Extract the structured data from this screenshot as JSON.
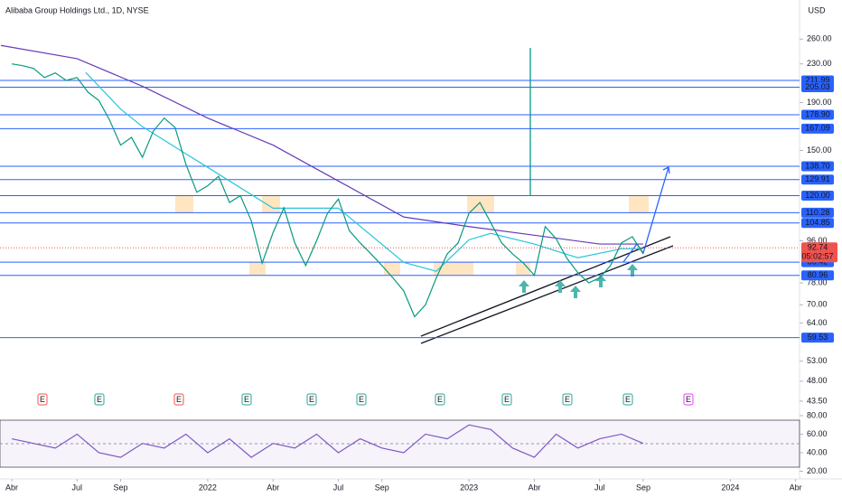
{
  "chart_data": [
    {
      "type": "line",
      "title": "Alibaba Group Holdings Ltd., 1D, NYSE",
      "currency": "USD",
      "log_scale": true,
      "color": "#089981",
      "x": [
        0,
        0.5,
        1,
        1.5,
        2,
        2.5,
        3,
        3.5,
        4,
        4.5,
        5,
        5.5,
        6,
        6.5,
        7,
        7.5,
        8,
        8.5,
        9,
        9.5,
        10,
        10.5,
        11,
        11.5,
        12,
        12.5,
        13,
        13.5,
        14,
        14.5,
        15,
        15.5,
        16,
        16.5,
        17,
        17.5,
        18,
        18.5,
        19,
        19.5,
        20,
        20.5,
        21,
        21.5,
        22,
        22.5,
        23,
        23.5,
        24,
        24.5,
        25,
        25.5,
        26,
        26.5,
        27,
        27.5,
        28,
        28.5,
        29
      ],
      "values": [
        230,
        228,
        225,
        215,
        220,
        212,
        215,
        200,
        192,
        174,
        154,
        160,
        145,
        165,
        176,
        168,
        140,
        122,
        126,
        132,
        116,
        120,
        106,
        86,
        100,
        113,
        95,
        85,
        96,
        110,
        118,
        101,
        95,
        90,
        85,
        80,
        75,
        66,
        70,
        80,
        90,
        95,
        110,
        116,
        105,
        95,
        90,
        86,
        81,
        103,
        97,
        88,
        82,
        78,
        80,
        85,
        95,
        98,
        90
      ],
      "series": [
        {
          "color": "#26c6da",
          "x": [
            3.4,
            5,
            6,
            8,
            9,
            12,
            15,
            18,
            19.5,
            21,
            22,
            24,
            26,
            28,
            29
          ],
          "values": [
            220.5,
            184,
            168.7,
            147.5,
            138,
            112.8,
            112.8,
            86.3,
            82.6,
            96.5,
            99.6,
            94.5,
            88.3,
            92.3,
            92.3
          ]
        },
        {
          "color": "#673ab7",
          "x": [
            -0.5,
            3,
            6,
            9,
            12,
            15,
            18,
            21,
            24,
            27,
            29
          ],
          "values": [
            252,
            236,
            206,
            176,
            154,
            129,
            108,
            103,
            98.7,
            94.5,
            94.5
          ]
        }
      ],
      "levels": [
        211.99,
        {
          "value": 205.03,
          "label": "205.03"
        },
        {
          "value": 178.9,
          "label": "178.90"
        },
        167.09,
        {
          "value": 138.7,
          "label": "138.70"
        },
        129.91,
        {
          "value": 120,
          "label": "120.00"
        },
        110.28,
        104.85,
        86.42,
        80.96,
        59.53
      ],
      "last_price": 92.74,
      "countdown": "05:02:57",
      "earnings": [
        "E",
        "E",
        "E",
        "E",
        "E",
        "E",
        "E",
        "E",
        "E",
        "E",
        "E"
      ],
      "xlim": [
        -0.54,
        36.18
      ],
      "ylim": [
        41.4,
        288.4
      ],
      "xticks": [
        {
          "value": 0,
          "label": "Abr"
        },
        {
          "value": 3,
          "label": "Jul"
        },
        {
          "value": 5,
          "label": "Sep"
        },
        {
          "value": 9,
          "label": "2022"
        },
        {
          "value": 12,
          "label": "Abr"
        },
        {
          "value": 15,
          "label": "Jul"
        },
        {
          "value": 17,
          "label": "Sep"
        },
        {
          "value": 21,
          "label": "2023"
        },
        {
          "value": 24,
          "label": "Abr"
        },
        {
          "value": 27,
          "label": "Jul"
        },
        {
          "value": 29,
          "label": "Sep"
        },
        {
          "value": 33,
          "label": "2024"
        },
        {
          "value": 36,
          "label": "Abr"
        }
      ],
      "yticks": [
        {
          "value": 260,
          "label": "260.00"
        },
        {
          "value": 230,
          "label": "230.00"
        },
        {
          "value": 190,
          "label": "190.00"
        },
        {
          "value": 150,
          "label": "150.00"
        },
        {
          "value": 96,
          "label": "96.00"
        },
        {
          "value": 78,
          "label": "78.00"
        },
        {
          "value": 70,
          "label": "70.00"
        },
        {
          "value": 64,
          "label": "64.00"
        },
        {
          "value": 53,
          "label": "53.00"
        },
        {
          "value": 48,
          "label": "48.00"
        },
        {
          "value": 43.5,
          "label": "43.50"
        }
      ]
    },
    {
      "type": "line",
      "color": "#7e57c2",
      "x": [
        0,
        1,
        2,
        3,
        4,
        5,
        6,
        7,
        8,
        9,
        10,
        11,
        12,
        13,
        14,
        15,
        16,
        17,
        18,
        19,
        20,
        21,
        22,
        23,
        24,
        25,
        26,
        27,
        28,
        29
      ],
      "values": [
        55,
        50,
        45,
        60,
        40,
        35,
        50,
        45,
        60,
        40,
        55,
        35,
        50,
        45,
        60,
        40,
        55,
        45,
        40,
        60,
        55,
        70,
        65,
        45,
        35,
        60,
        45,
        55,
        60,
        50
      ],
      "xlim": [
        -0.54,
        36.18
      ],
      "ylim": [
        14.6,
        82.9
      ],
      "yticks": [
        {
          "value": 80,
          "label": "80.00"
        },
        {
          "value": 60,
          "label": "60.00"
        },
        {
          "value": 40,
          "label": "40.00"
        },
        {
          "value": 20,
          "label": "20.00"
        }
      ]
    }
  ]
}
